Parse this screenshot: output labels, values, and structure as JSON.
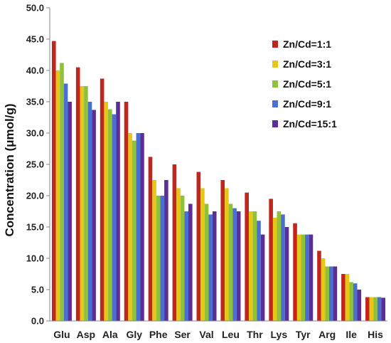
{
  "chart_data": {
    "type": "bar",
    "title": "",
    "xlabel": "",
    "ylabel": "Concentration (μmol/g)",
    "ylim": [
      0,
      50
    ],
    "yticks": [
      "0.0",
      "5.0",
      "10.0",
      "15.0",
      "20.0",
      "25.0",
      "30.0",
      "35.0",
      "40.0",
      "45.0",
      "50.0"
    ],
    "grid": false,
    "legend_position": "top-right",
    "categories": [
      "Glu",
      "Asp",
      "Ala",
      "Gly",
      "Phe",
      "Ser",
      "Val",
      "Leu",
      "Thr",
      "Lys",
      "Tyr",
      "Arg",
      "Ile",
      "His"
    ],
    "series": [
      {
        "name": "Zn/Cd=1:1",
        "color": "#c0261c",
        "values": [
          44.7,
          40.5,
          38.7,
          35.0,
          26.2,
          25.0,
          23.8,
          22.5,
          20.5,
          19.5,
          15.6,
          11.2,
          7.5,
          3.8
        ]
      },
      {
        "name": "Zn/Cd=3:1",
        "color": "#e6c619",
        "values": [
          40.0,
          37.5,
          35.0,
          30.0,
          22.5,
          21.2,
          21.2,
          21.2,
          17.5,
          16.5,
          13.8,
          10.0,
          7.5,
          3.8
        ]
      },
      {
        "name": "Zn/Cd=5:1",
        "color": "#8fc23a",
        "values": [
          41.2,
          37.5,
          33.8,
          28.8,
          20.0,
          20.0,
          18.7,
          18.7,
          17.5,
          17.5,
          13.8,
          8.7,
          6.2,
          3.8
        ]
      },
      {
        "name": "Zn/Cd=9:1",
        "color": "#4a6fd1",
        "values": [
          37.9,
          35.0,
          33.0,
          30.0,
          20.0,
          17.5,
          17.0,
          18.0,
          16.0,
          17.0,
          13.8,
          8.7,
          6.0,
          3.8
        ]
      },
      {
        "name": "Zn/Cd=15:1",
        "color": "#5b2d96",
        "values": [
          35.0,
          33.7,
          35.0,
          30.0,
          22.5,
          18.7,
          17.5,
          17.5,
          13.8,
          15.0,
          13.8,
          8.7,
          5.0,
          3.7
        ]
      }
    ]
  }
}
